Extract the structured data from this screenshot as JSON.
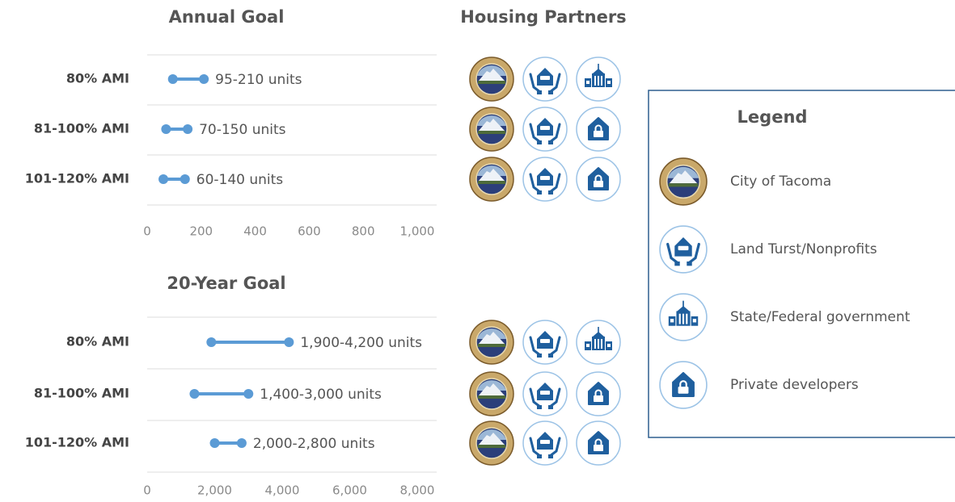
{
  "chart_data": [
    {
      "type": "dumbbell",
      "title": "Annual Goal",
      "color": "#5b9bd5",
      "categories": [
        "80% AMI",
        "81-100% AMI",
        "101-120% AMI"
      ],
      "start": [
        95,
        70,
        60
      ],
      "end": [
        210,
        150,
        140
      ],
      "value_labels": [
        "95-210 units",
        "70-150 units",
        "60-140 units"
      ],
      "xlim": [
        0,
        1000
      ],
      "xticks": [
        0,
        200,
        400,
        600,
        800,
        {
          "value": 1000,
          "label": "1,000"
        }
      ],
      "grid": true
    },
    {
      "type": "dumbbell",
      "title": "20-Year Goal",
      "color": "#5b9bd5",
      "categories": [
        "80% AMI",
        "81-100% AMI",
        "101-120% AMI"
      ],
      "start": [
        1900,
        1400,
        2000
      ],
      "end": [
        4200,
        3000,
        2800
      ],
      "value_labels": [
        "1,900-4,200 units",
        "1,400-3,000 units",
        "2,000-2,800 units"
      ],
      "xlim": [
        0,
        8000
      ],
      "xticks": [
        0,
        {
          "value": 2000,
          "label": "2,000"
        },
        {
          "value": 4000,
          "label": "4,000"
        },
        {
          "value": 6000,
          "label": "6,000"
        },
        {
          "value": 8000,
          "label": "8,000"
        }
      ],
      "grid": true
    }
  ],
  "partners_title": "Housing Partners",
  "legend": {
    "title": "Legend",
    "items": [
      "City of Tacoma",
      "Land Turst/Nonprofits",
      "State/Federal government",
      "Private developers"
    ]
  }
}
